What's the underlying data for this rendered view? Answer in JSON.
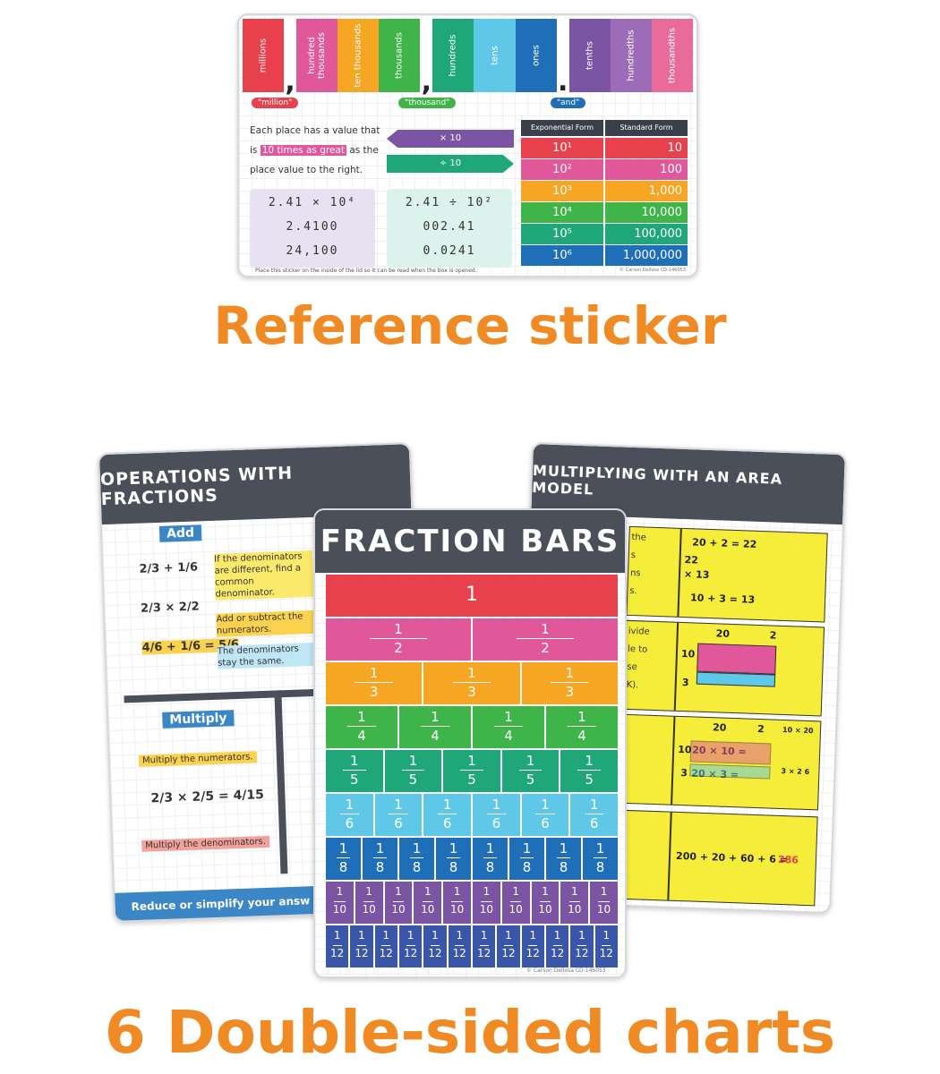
{
  "sticker": {
    "place_values": [
      "millions",
      "hundred thousands",
      "ten thousands",
      "thousands",
      "hundreds",
      "tens",
      "ones",
      "tenths",
      "hundredths",
      "thousandths"
    ],
    "place_colors": [
      "#e8414d",
      "#e0579a",
      "#f6a623",
      "#3fb549",
      "#1fa77a",
      "#5fc8e8",
      "#1f6fb8",
      "#7b54a3",
      "#9d6cb8",
      "#e86b9a"
    ],
    "separators": [
      ",",
      ",",
      "."
    ],
    "period_labels": [
      "\"million\"",
      "\"thousand\"",
      "\"and\""
    ],
    "rule_text": [
      "Each place has a value that",
      "is",
      "10 times as great",
      "as the",
      "place value to the right."
    ],
    "arrows": [
      "× 10",
      "÷ 10"
    ],
    "example_multiply": [
      "2.41 × 10⁴",
      "2.4100",
      "24,100"
    ],
    "example_divide": [
      "2.41 ÷ 10²",
      "002.41",
      "0.0241"
    ],
    "table": {
      "headers": [
        "Exponential Form",
        "Standard Form"
      ],
      "rows": [
        [
          "10¹",
          "10"
        ],
        [
          "10²",
          "100"
        ],
        [
          "10³",
          "1,000"
        ],
        [
          "10⁴",
          "10,000"
        ],
        [
          "10⁵",
          "100,000"
        ],
        [
          "10⁶",
          "1,000,000"
        ]
      ],
      "row_colors": [
        "#e8414d",
        "#e0579a",
        "#f6a623",
        "#3fb549",
        "#1fa77a",
        "#1f6fb8"
      ]
    },
    "footnote": "Place this sticker on the inside of the lid so it can be read when the box is opened.",
    "copyright": "© Carson Dellosa CD-146053"
  },
  "caption_top": "Reference sticker",
  "operations_card": {
    "title": "OPERATIONS WITH FRACTIONS",
    "add_label": "Add",
    "add_steps": [
      "2/3 + 1/6",
      "2/3 × 2/2",
      "4/6 + 1/6 = 5/6"
    ],
    "add_notes": [
      "If the denominators are different, find a common denominator.",
      "Add or subtract the numerators.",
      "The denominators stay the same."
    ],
    "multiply_label": "Multiply",
    "multiply_notes": [
      "Multiply the numerators.",
      "Multiply the denominators."
    ],
    "multiply_example": "2/3 × 2/5 = 4/15",
    "footer": "Reduce or simplify your answ"
  },
  "area_card": {
    "title": "MULTIPLYING WITH AN AREA MODEL",
    "fragments": [
      [
        "the",
        "s",
        "ns",
        "s."
      ],
      [
        "ivide",
        "le to",
        "se",
        "K)."
      ],
      [],
      []
    ],
    "panel_texts": [
      [
        "20 + 2 = 22",
        "22",
        "× 13",
        "10 + 3 = 13"
      ],
      [
        "20",
        "2",
        "10",
        "3"
      ],
      [
        "20",
        "2",
        "10",
        "3",
        "20 × 10 =",
        "20 × 3 =",
        "10 × 20",
        "3 × 2 6"
      ],
      [
        "200 + 20 + 60 + 6 =",
        "286"
      ]
    ]
  },
  "fraction_card": {
    "title": "FRACTION BARS",
    "whole": "1",
    "numerator": "1",
    "denominators": [
      "2",
      "3",
      "4",
      "5",
      "6",
      "8",
      "10",
      "12"
    ],
    "row_colors": [
      "#e8414d",
      "#e0579a",
      "#f6a623",
      "#3fb549",
      "#1fa77a",
      "#5fc8e8",
      "#1f6fb8",
      "#7b54a3",
      "#3a56a8"
    ],
    "copyright": "© Carson Dellosa CD-146053"
  },
  "caption_bottom": "6 Double-sided charts"
}
